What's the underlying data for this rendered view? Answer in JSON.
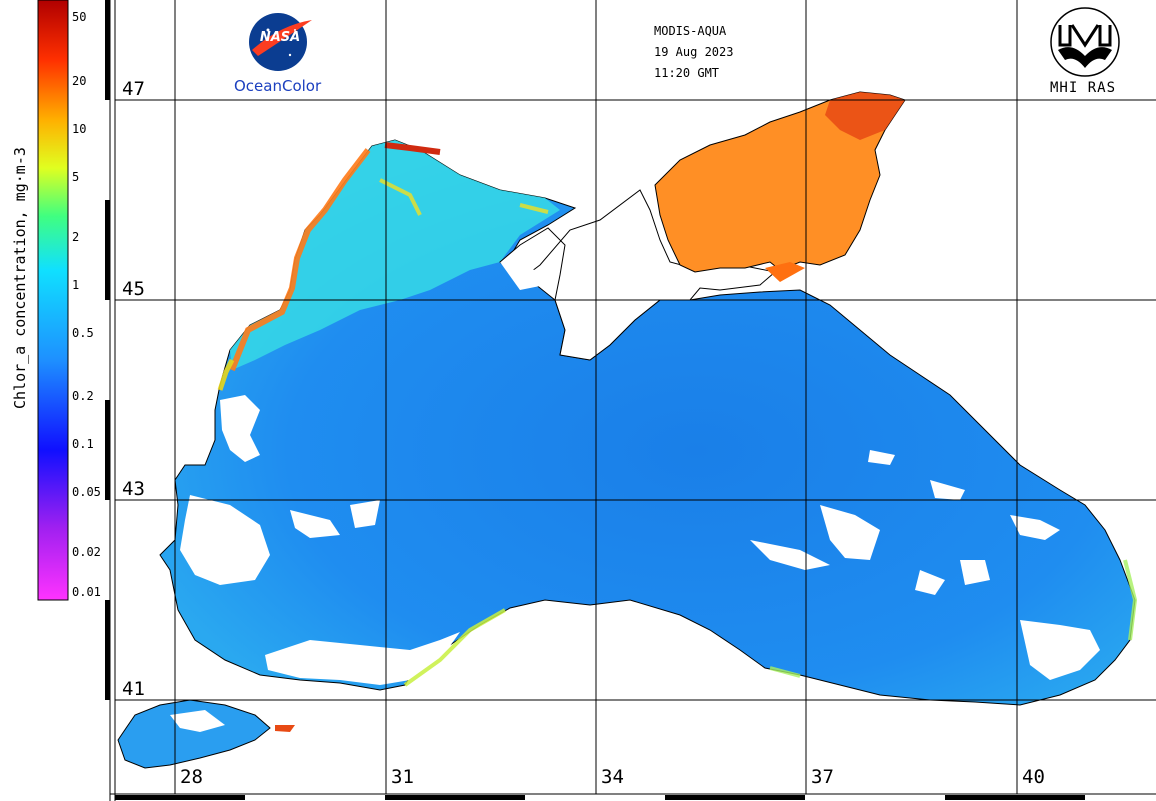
{
  "header": {
    "sensor": "MODIS-AQUA",
    "date": "19 Aug 2023",
    "time": "11:20 GMT"
  },
  "logos": {
    "nasa_text": "NASA",
    "nasa_caption": "OceanColor",
    "mhi_caption": "MHI RAS"
  },
  "colorbar": {
    "title": "Chlor_a concentration, mg·m-3",
    "ticks": [
      "50",
      "20",
      "10",
      "5",
      "2",
      "1",
      "0.5",
      "0.2",
      "0.1",
      "0.05",
      "0.02",
      "0.01"
    ],
    "scale": "log",
    "colors": [
      "#ff00ff",
      "#8a00ff",
      "#0000ff",
      "#0088ff",
      "#00ffff",
      "#00ff80",
      "#ffff00",
      "#ff8000",
      "#ff0000",
      "#800000"
    ]
  },
  "map": {
    "latitudes": [
      "47",
      "45",
      "43",
      "41"
    ],
    "longitudes": [
      "28",
      "31",
      "34",
      "37",
      "40"
    ],
    "sea_color": "#1e90ff",
    "coastal_color": "#33d6e0",
    "azov_color": "#ff8a1e",
    "bloom_color": "#e83a1a",
    "cloud_color": "#ffffff"
  }
}
